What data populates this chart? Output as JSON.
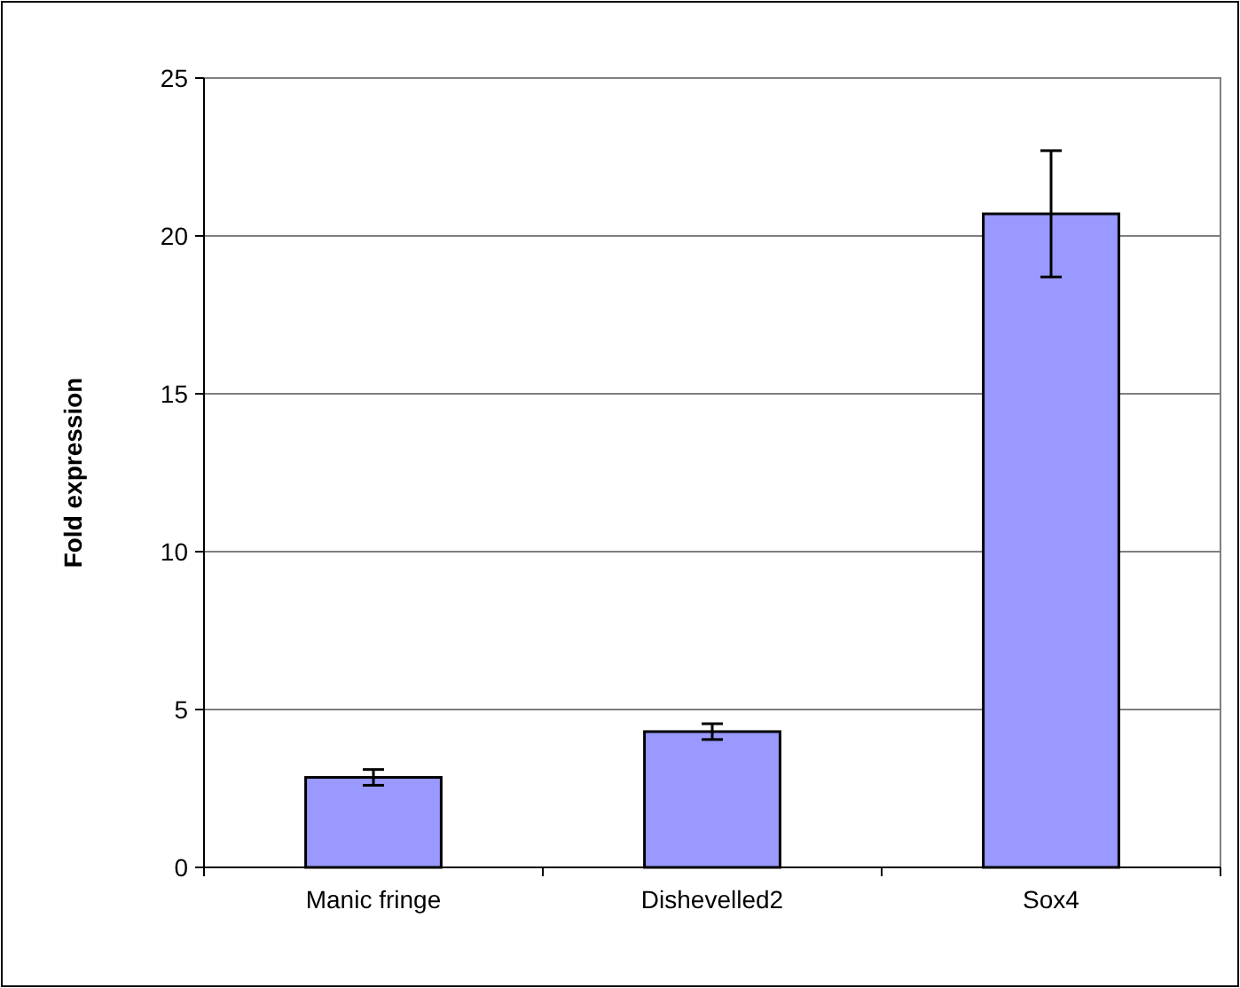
{
  "chart_data": {
    "type": "bar",
    "ylabel": "Fold expression",
    "categories": [
      "Manic fringe",
      "Dishevelled2",
      "Sox4"
    ],
    "values": [
      2.85,
      4.3,
      20.7
    ],
    "errors": [
      0.25,
      0.25,
      2.0
    ],
    "color": "#9999ff",
    "ylim": [
      0,
      25
    ],
    "yticks": [
      0,
      5,
      10,
      15,
      20,
      25
    ],
    "grid": "y"
  }
}
